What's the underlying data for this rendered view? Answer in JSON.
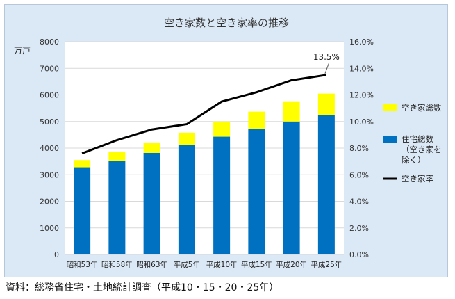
{
  "colors": {
    "vacant": "#ffff00",
    "housing": "#0070c0",
    "rate_line": "#000000",
    "background": "#dbe8f5",
    "grid": "#d9d9d9"
  },
  "source": "資料：総務省住宅・土地統計調査（平成10・15・20・25年）",
  "chart_data": {
    "type": "bar",
    "title": "空き家数と空き家率の推移",
    "ylabel": "万戸",
    "categories": [
      "昭和53年",
      "昭和58年",
      "昭和63年",
      "平成5年",
      "平成10年",
      "平成15年",
      "平成20年",
      "平成25年"
    ],
    "ylim": [
      0,
      8000
    ],
    "y_ticks": [
      "0",
      "1000",
      "2000",
      "3000",
      "4000",
      "5000",
      "6000",
      "7000",
      "8000"
    ],
    "y2lim": [
      0,
      16
    ],
    "y2_ticks": [
      "0.0%",
      "2.0%",
      "4.0%",
      "6.0%",
      "8.0%",
      "10.0%",
      "12.0%",
      "14.0%",
      "16.0%"
    ],
    "stacked": true,
    "grid": true,
    "legend_position": "right",
    "series": [
      {
        "name": "住宅総数（空き家を除く）",
        "type": "bar",
        "axis": "left",
        "values": [
          3280,
          3530,
          3820,
          4130,
          4430,
          4730,
          5000,
          5240
        ]
      },
      {
        "name": "空き家総数",
        "type": "bar",
        "axis": "left",
        "values": [
          270,
          330,
          390,
          450,
          570,
          640,
          760,
          810
        ]
      },
      {
        "name": "空き家率",
        "type": "line",
        "axis": "right",
        "values": [
          7.6,
          8.6,
          9.4,
          9.8,
          11.5,
          12.2,
          13.1,
          13.5
        ]
      }
    ],
    "annotations": [
      {
        "text": "13.5%",
        "series": "空き家率",
        "category": "平成25年"
      }
    ],
    "legend": [
      {
        "lines": [
          "空き家総数"
        ],
        "color": "#ffff00"
      },
      {
        "lines": [
          "住宅総数",
          "（空き家を",
          "除く）"
        ],
        "color": "#0070c0"
      },
      {
        "lines": [
          "空き家率"
        ],
        "color": "#000000"
      }
    ]
  }
}
